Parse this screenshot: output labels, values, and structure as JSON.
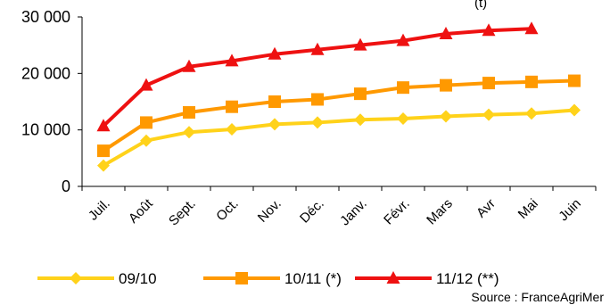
{
  "chart_data": {
    "type": "line",
    "title": "",
    "title_fragment": "(t)",
    "xlabel": "",
    "ylabel": "",
    "categories": [
      "Juil.",
      "Août",
      "Sept.",
      "Oct.",
      "Nov.",
      "Déc.",
      "Janv.",
      "Févr.",
      "Mars",
      "Avr",
      "Mai",
      "Juin"
    ],
    "ylim": [
      0,
      30000
    ],
    "yticks": [
      0,
      10000,
      20000,
      30000
    ],
    "ytick_labels": [
      "0",
      "10 000",
      "20 000",
      "30 000"
    ],
    "grid": false,
    "legend_position": "bottom",
    "series": [
      {
        "name": "09/10",
        "color": "#FFD21A",
        "marker": "diamond",
        "values": [
          3700,
          8100,
          9600,
          10100,
          11000,
          11300,
          11800,
          12000,
          12400,
          12700,
          12900,
          13500
        ]
      },
      {
        "name": "10/11 (*)",
        "color": "#FF9900",
        "marker": "square",
        "values": [
          6300,
          11300,
          13100,
          14100,
          15000,
          15400,
          16400,
          17500,
          17900,
          18300,
          18500,
          18700
        ]
      },
      {
        "name": "11/12 (**)",
        "color": "#EE1111",
        "marker": "triangle",
        "values": [
          10700,
          17900,
          21200,
          22200,
          23400,
          24200,
          25000,
          25800,
          27000,
          27600,
          27900,
          null
        ]
      }
    ]
  },
  "source": "Source : FranceAgriMer"
}
